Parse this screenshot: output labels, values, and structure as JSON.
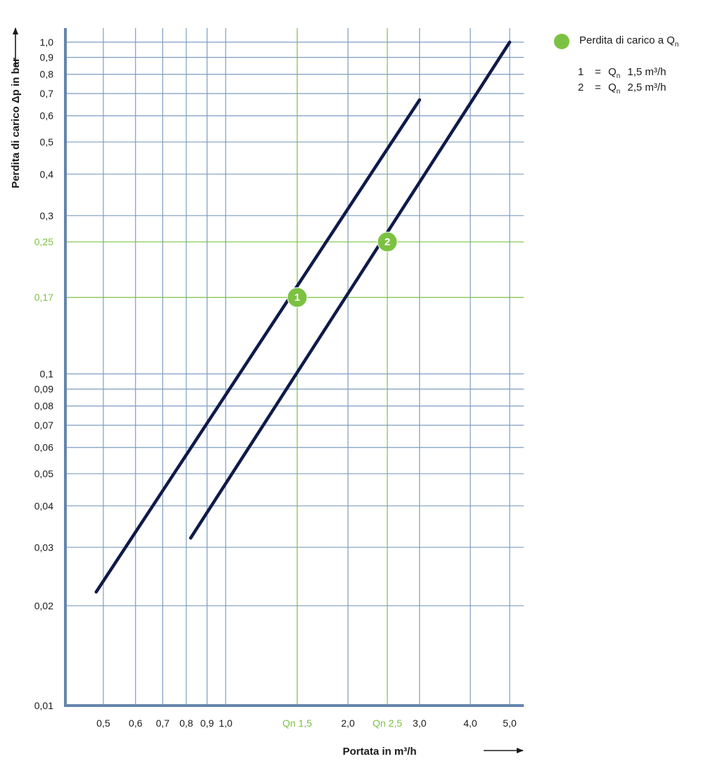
{
  "chart_data": {
    "type": "line",
    "xscale": "log",
    "yscale": "log",
    "xlim": [
      0.43,
      5.3
    ],
    "ylim": [
      0.01,
      1.08
    ],
    "xlabel": "Portata in m³/h",
    "ylabel": "Perdita di carico Δp in bar",
    "x_ticks": [
      {
        "value": 0.5,
        "label": "0,5"
      },
      {
        "value": 0.6,
        "label": "0,6"
      },
      {
        "value": 0.7,
        "label": "0,7"
      },
      {
        "value": 0.8,
        "label": "0,8"
      },
      {
        "value": 0.9,
        "label": "0,9"
      },
      {
        "value": 1.0,
        "label": "1,0"
      },
      {
        "value": 1.5,
        "label": "Qn 1,5",
        "highlight": true
      },
      {
        "value": 2.0,
        "label": "2,0"
      },
      {
        "value": 2.5,
        "label": "Qn 2,5",
        "highlight": true
      },
      {
        "value": 3.0,
        "label": "3,0"
      },
      {
        "value": 4.0,
        "label": "4,0"
      },
      {
        "value": 5.0,
        "label": "5,0"
      }
    ],
    "y_ticks": [
      {
        "value": 0.01,
        "label": "0,01"
      },
      {
        "value": 0.02,
        "label": "0,02"
      },
      {
        "value": 0.03,
        "label": "0,03"
      },
      {
        "value": 0.04,
        "label": "0,04"
      },
      {
        "value": 0.05,
        "label": "0,05"
      },
      {
        "value": 0.06,
        "label": "0,06"
      },
      {
        "value": 0.07,
        "label": "0,07"
      },
      {
        "value": 0.08,
        "label": "0,08"
      },
      {
        "value": 0.09,
        "label": "0,09"
      },
      {
        "value": 0.1,
        "label": "0,1"
      },
      {
        "value": 0.17,
        "label": "0,17",
        "highlight": true
      },
      {
        "value": 0.25,
        "label": "0,25",
        "highlight": true
      },
      {
        "value": 0.3,
        "label": "0,3"
      },
      {
        "value": 0.4,
        "label": "0,4"
      },
      {
        "value": 0.5,
        "label": "0,5"
      },
      {
        "value": 0.6,
        "label": "0,6"
      },
      {
        "value": 0.7,
        "label": "0,7"
      },
      {
        "value": 0.8,
        "label": "0,8"
      },
      {
        "value": 0.9,
        "label": "0,9"
      },
      {
        "value": 1.0,
        "label": "1,0"
      }
    ],
    "series": [
      {
        "name": "1",
        "x": [
          0.48,
          3.0
        ],
        "y": [
          0.022,
          0.67
        ]
      },
      {
        "name": "2",
        "x": [
          0.82,
          5.0
        ],
        "y": [
          0.032,
          1.0
        ]
      }
    ],
    "markers": [
      {
        "label": "1",
        "x": 1.5,
        "y": 0.17
      },
      {
        "label": "2",
        "x": 2.5,
        "y": 0.25
      }
    ],
    "grid": true,
    "legend_position": "top-right"
  },
  "legend": {
    "title": "Perdita di carico a",
    "title_symbol": "Q",
    "title_subscript": "n",
    "items": [
      {
        "num": "1",
        "eq": "=",
        "sym": "Q",
        "sub": "n",
        "value": "1,5 m³/h"
      },
      {
        "num": "2",
        "eq": "=",
        "sym": "Q",
        "sub": "n",
        "value": "2,5 m³/h"
      }
    ]
  },
  "colors": {
    "grid": "#7e9cc0",
    "axis": "#6585ad",
    "highlight": "#7cc242",
    "series": "#0f1a4a",
    "text": "#1a1a1a"
  }
}
